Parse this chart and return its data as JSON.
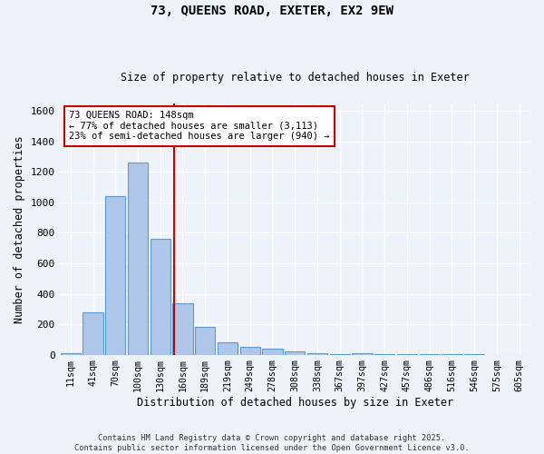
{
  "title1": "73, QUEENS ROAD, EXETER, EX2 9EW",
  "title2": "Size of property relative to detached houses in Exeter",
  "xlabel": "Distribution of detached houses by size in Exeter",
  "ylabel": "Number of detached properties",
  "bar_labels": [
    "11sqm",
    "41sqm",
    "70sqm",
    "100sqm",
    "130sqm",
    "160sqm",
    "189sqm",
    "219sqm",
    "249sqm",
    "278sqm",
    "308sqm",
    "338sqm",
    "367sqm",
    "397sqm",
    "427sqm",
    "457sqm",
    "486sqm",
    "516sqm",
    "546sqm",
    "575sqm",
    "605sqm"
  ],
  "bar_values": [
    10,
    280,
    1040,
    1260,
    760,
    335,
    185,
    80,
    50,
    38,
    24,
    10,
    5,
    10,
    1,
    3,
    1,
    1,
    1,
    0,
    0
  ],
  "bar_color": "#aec6e8",
  "bar_edgecolor": "#5b9bd5",
  "vline_x": 4.6,
  "vline_color": "#cc0000",
  "annotation_text": "73 QUEENS ROAD: 148sqm\n← 77% of detached houses are smaller (3,113)\n23% of semi-detached houses are larger (940) →",
  "annotation_box_color": "#ffffff",
  "annotation_box_edgecolor": "#cc0000",
  "ylim": [
    0,
    1650
  ],
  "yticks": [
    0,
    200,
    400,
    600,
    800,
    1000,
    1200,
    1400,
    1600
  ],
  "footer1": "Contains HM Land Registry data © Crown copyright and database right 2025.",
  "footer2": "Contains public sector information licensed under the Open Government Licence v3.0.",
  "bg_color": "#eef2f9",
  "grid_color": "#d8dde8"
}
